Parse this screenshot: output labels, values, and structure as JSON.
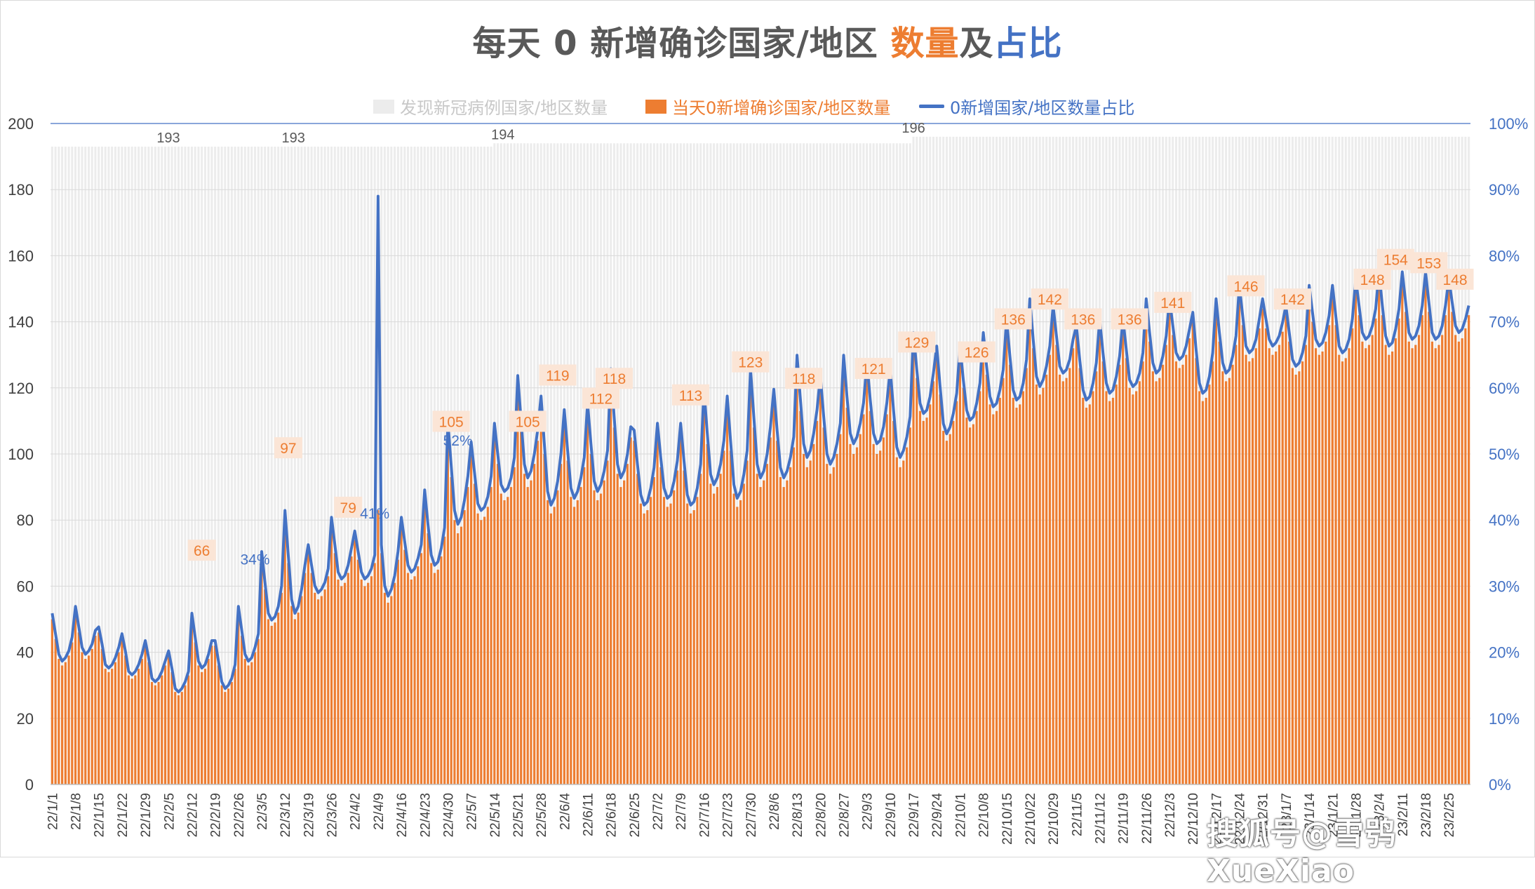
{
  "title": {
    "prefix": "每天 0 新增确诊国家/地区 ",
    "count_word": "数量",
    "joiner": "及",
    "ratio_word": "占比"
  },
  "watermark": "搜狐号@雪鸮XueXiao",
  "colors": {
    "total_bars": "#ececec",
    "zero_bars": "#ed7d31",
    "ratio_line": "#4472c4",
    "label_bg": "#fbe5d6",
    "axis_text": "#404040",
    "ratio_axis_text": "#4472c4"
  },
  "chart_data": {
    "type": "bar",
    "title": "每天 0 新增确诊国家/地区 数量及占比",
    "legend_position": "top",
    "grid": true,
    "x_tick_labels": [
      "22/1/1",
      "22/1/8",
      "22/1/15",
      "22/1/22",
      "22/1/29",
      "22/2/5",
      "22/2/12",
      "22/2/19",
      "22/2/26",
      "22/3/5",
      "22/3/12",
      "22/3/19",
      "22/3/26",
      "22/4/2",
      "22/4/9",
      "22/4/16",
      "22/4/23",
      "22/4/30",
      "22/5/7",
      "22/5/14",
      "22/5/21",
      "22/5/28",
      "22/6/4",
      "22/6/11",
      "22/6/18",
      "22/6/25",
      "22/7/2",
      "22/7/9",
      "22/7/16",
      "22/7/23",
      "22/7/30",
      "22/8/6",
      "22/8/13",
      "22/8/20",
      "22/8/27",
      "22/9/3",
      "22/9/10",
      "22/9/17",
      "22/9/24",
      "22/10/1",
      "22/10/8",
      "22/10/15",
      "22/10/22",
      "22/10/29",
      "22/11/5",
      "22/11/12",
      "22/11/19",
      "22/11/26",
      "22/12/3",
      "22/12/10",
      "22/12/17",
      "22/12/24",
      "22/12/31",
      "23/1/7",
      "23/1/14",
      "23/1/21",
      "23/1/28",
      "23/2/4",
      "23/2/11",
      "23/2/18",
      "23/2/25"
    ],
    "y_left": {
      "ticks": [
        "0",
        "20",
        "40",
        "60",
        "80",
        "100",
        "120",
        "140",
        "160",
        "180",
        "200"
      ],
      "ylim": [
        0,
        200
      ]
    },
    "y_right": {
      "ticks": [
        "0%",
        "10%",
        "20%",
        "30%",
        "40%",
        "50%",
        "60%",
        "70%",
        "80%",
        "90%",
        "100%"
      ],
      "ylim": [
        0,
        1
      ]
    },
    "series": [
      {
        "name": "发现新冠病例国家/地区数量",
        "type": "bar",
        "segments": [
          {
            "from": "22/1/1",
            "value": 193
          },
          {
            "from": "22/3/12",
            "value": 193
          },
          {
            "from": "22/5/14",
            "value": 194
          },
          {
            "from": "22/9/17",
            "value": 196
          }
        ]
      },
      {
        "name": "当天0新增确诊国家/地区数量",
        "type": "bar",
        "weekly_base": [
          36,
          38,
          34,
          32,
          30,
          27,
          34,
          28,
          36,
          48,
          50,
          56,
          60,
          60,
          55,
          62,
          64,
          76,
          80,
          86,
          90,
          82,
          84,
          86,
          90,
          82,
          84,
          82,
          88,
          84,
          90,
          90,
          96,
          94,
          100,
          100,
          96,
          110,
          104,
          108,
          112,
          114,
          118,
          122,
          114,
          116,
          118,
          122,
          126,
          116,
          122,
          128,
          130,
          124,
          130,
          128,
          132,
          130,
          132,
          132,
          134
        ],
        "weekly_amp": [
          14,
          14,
          12,
          12,
          12,
          12,
          16,
          14,
          16,
          20,
          30,
          14,
          18,
          14,
          28,
          16,
          22,
          30,
          20,
          20,
          30,
          32,
          26,
          26,
          32,
          22,
          22,
          24,
          28,
          30,
          32,
          26,
          30,
          26,
          26,
          24,
          26,
          24,
          26,
          22,
          22,
          24,
          26,
          20,
          22,
          22,
          20,
          22,
          18,
          24,
          22,
          20,
          14,
          18,
          18,
          20,
          18,
          22,
          20,
          20,
          16
        ]
      },
      {
        "name": "0新增国家/地区数量占比",
        "type": "line",
        "axis": "right",
        "spike": {
          "date": "22/4/9",
          "value": 0.89
        }
      }
    ],
    "data_labels": [
      {
        "week": 6,
        "day": 3,
        "value": "66"
      },
      {
        "week": 10,
        "day": 1,
        "value": "97"
      },
      {
        "week": 12,
        "day": 5,
        "value": "79"
      },
      {
        "week": 17,
        "day": 1,
        "value": "105"
      },
      {
        "week": 20,
        "day": 3,
        "value": "105"
      },
      {
        "week": 21,
        "day": 5,
        "value": "119"
      },
      {
        "week": 23,
        "day": 4,
        "value": "112"
      },
      {
        "week": 24,
        "day": 1,
        "value": "118"
      },
      {
        "week": 27,
        "day": 3,
        "value": "113"
      },
      {
        "week": 30,
        "day": 0,
        "value": "123"
      },
      {
        "week": 32,
        "day": 2,
        "value": "118"
      },
      {
        "week": 35,
        "day": 2,
        "value": "121"
      },
      {
        "week": 37,
        "day": 1,
        "value": "129"
      },
      {
        "week": 39,
        "day": 5,
        "value": "126"
      },
      {
        "week": 41,
        "day": 2,
        "value": "136"
      },
      {
        "week": 42,
        "day": 6,
        "value": "142"
      },
      {
        "week": 44,
        "day": 2,
        "value": "136"
      },
      {
        "week": 46,
        "day": 2,
        "value": "136"
      },
      {
        "week": 48,
        "day": 1,
        "value": "141"
      },
      {
        "week": 51,
        "day": 2,
        "value": "146"
      },
      {
        "week": 53,
        "day": 2,
        "value": "142"
      },
      {
        "week": 56,
        "day": 5,
        "value": "148"
      },
      {
        "week": 57,
        "day": 5,
        "value": "154"
      },
      {
        "week": 59,
        "day": 1,
        "value": "153"
      },
      {
        "week": 60,
        "day": 2,
        "value": "148"
      }
    ],
    "total_labels": [
      {
        "date": "22/1/1",
        "value": "193"
      },
      {
        "date": "22/3/12",
        "value": "193"
      },
      {
        "date": "22/5/14",
        "value": "194"
      },
      {
        "date": "22/9/17",
        "value": "196"
      }
    ],
    "ratio_labels": [
      {
        "week": 8,
        "day": 5,
        "value": "34%"
      },
      {
        "week": 13,
        "day": 6,
        "value": "41%"
      },
      {
        "week": 17,
        "day": 3,
        "value": "52%"
      }
    ]
  }
}
